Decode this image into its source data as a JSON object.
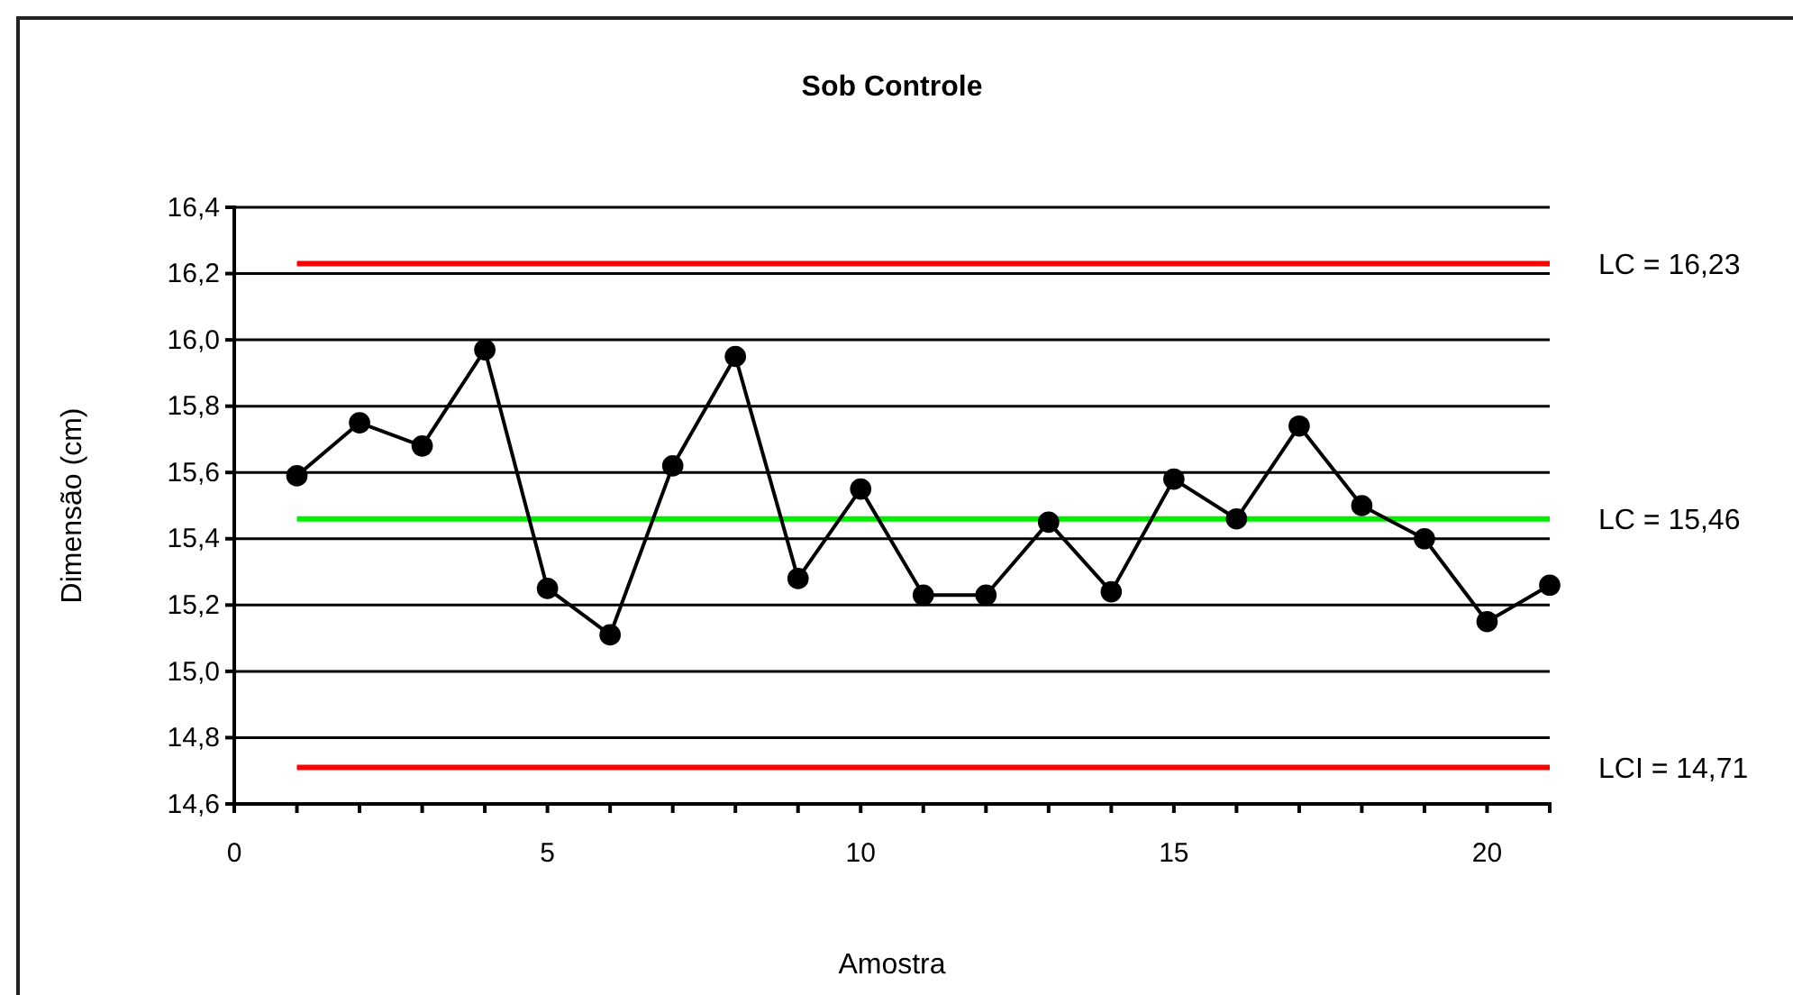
{
  "chart_data": {
    "type": "line",
    "title": "Sob Controle",
    "xlabel": "Amostra",
    "ylabel": "Dimensão (cm)",
    "x": [
      1,
      2,
      3,
      4,
      5,
      6,
      7,
      8,
      9,
      10,
      11,
      12,
      13,
      14,
      15,
      16,
      17,
      18,
      19,
      20,
      21
    ],
    "series": [
      {
        "color": "#000000",
        "values": [
          15.59,
          15.75,
          15.68,
          15.97,
          15.25,
          15.11,
          15.62,
          15.95,
          15.28,
          15.55,
          15.23,
          15.23,
          15.45,
          15.24,
          15.58,
          15.46,
          15.74,
          15.5,
          15.4,
          15.15,
          15.26
        ]
      }
    ],
    "xlim": [
      0,
      21
    ],
    "xticks": [
      0,
      {
        "value": 1,
        "label": null
      },
      {
        "value": 2,
        "label": null
      },
      {
        "value": 3,
        "label": null
      },
      {
        "value": 4,
        "label": null
      },
      5,
      {
        "value": 6,
        "label": null
      },
      {
        "value": 7,
        "label": null
      },
      {
        "value": 8,
        "label": null
      },
      {
        "value": 9,
        "label": null
      },
      10,
      {
        "value": 11,
        "label": null
      },
      {
        "value": 12,
        "label": null
      },
      {
        "value": 13,
        "label": null
      },
      {
        "value": 14,
        "label": null
      },
      15,
      {
        "value": 16,
        "label": null
      },
      {
        "value": 17,
        "label": null
      },
      {
        "value": 18,
        "label": null
      },
      {
        "value": 19,
        "label": null
      },
      20,
      {
        "value": 21,
        "label": null
      }
    ],
    "ylim": [
      14.6,
      16.4
    ],
    "yticks": [
      {
        "value": 14.6,
        "label": "14,6"
      },
      {
        "value": 14.8,
        "label": "14,8"
      },
      {
        "value": 15.0,
        "label": "15,0"
      },
      {
        "value": 15.2,
        "label": "15,2"
      },
      {
        "value": 15.4,
        "label": "15,4"
      },
      {
        "value": 15.6,
        "label": "15,6"
      },
      {
        "value": 15.8,
        "label": "15,8"
      },
      {
        "value": 16.0,
        "label": "16,0"
      },
      {
        "value": 16.2,
        "label": "16,2"
      },
      {
        "value": 16.4,
        "label": "16,4"
      }
    ],
    "ref_lines": [
      {
        "axis": "y",
        "value": 16.23,
        "label": "LC = 16,23",
        "color": "#ff0000"
      },
      {
        "axis": "y",
        "value": 15.46,
        "label": "LC = 15,46",
        "color": "#00ee00"
      },
      {
        "axis": "y",
        "value": 14.71,
        "label": "LCI = 14,71",
        "color": "#ff0000"
      }
    ],
    "grid": "y",
    "marker": "circle",
    "line_style": "solid"
  }
}
